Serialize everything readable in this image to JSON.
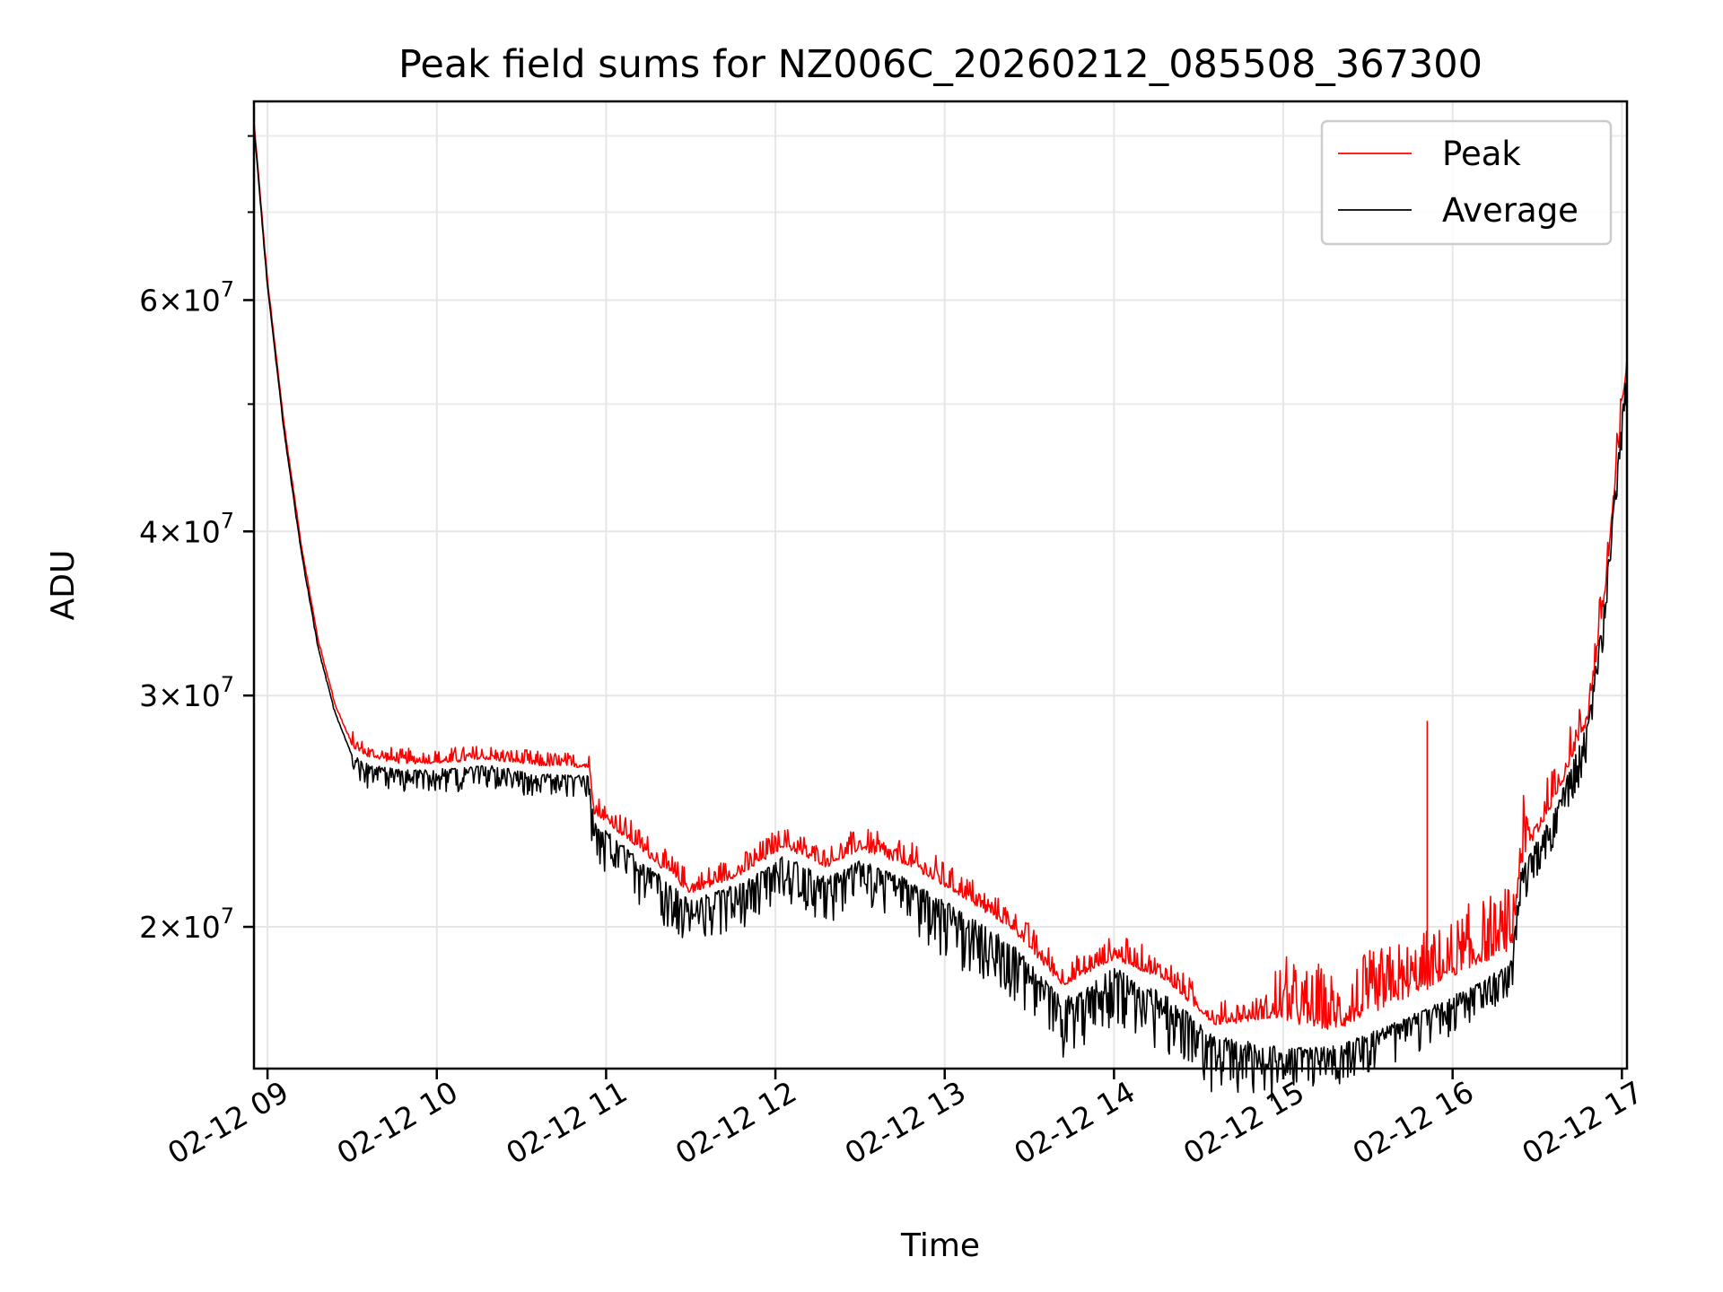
{
  "chart_data": {
    "type": "line",
    "title": "Peak field sums for NZ006C_20260212_085508_367300",
    "xlabel": "Time",
    "ylabel": "ADU",
    "y_scale": "log",
    "grid": true,
    "legend_position": "top-right",
    "xlim": [
      8.92,
      17.03
    ],
    "ylim": [
      15600000,
      85000000
    ],
    "x_ticks": [
      {
        "value": 9,
        "label": "02-12 09"
      },
      {
        "value": 10,
        "label": "02-12 10"
      },
      {
        "value": 11,
        "label": "02-12 11"
      },
      {
        "value": 12,
        "label": "02-12 12"
      },
      {
        "value": 13,
        "label": "02-12 13"
      },
      {
        "value": 14,
        "label": "02-12 14"
      },
      {
        "value": 15,
        "label": "02-12 15"
      },
      {
        "value": 16,
        "label": "02-12 16"
      },
      {
        "value": 17,
        "label": "02-12 17"
      }
    ],
    "y_ticks": [
      {
        "value": 20000000,
        "mantissa": "2",
        "exponent": "7"
      },
      {
        "value": 30000000,
        "mantissa": "3",
        "exponent": "7"
      },
      {
        "value": 40000000,
        "mantissa": "4",
        "exponent": "7"
      },
      {
        "value": 60000000,
        "mantissa": "6",
        "exponent": "7"
      }
    ],
    "y_minor_ticks": [
      50000000,
      70000000,
      80000000
    ],
    "series": [
      {
        "name": "Peak",
        "color": "#ff0000",
        "x": [
          8.92,
          9.0,
          9.1,
          9.2,
          9.3,
          9.4,
          9.5,
          9.6,
          9.8,
          10.0,
          10.3,
          10.6,
          10.9,
          10.93,
          11.2,
          11.5,
          11.8,
          12.05,
          12.3,
          12.5,
          12.8,
          13.1,
          13.4,
          13.7,
          14.0,
          14.3,
          14.6,
          15.0,
          15.3,
          15.6,
          15.9,
          16.2,
          16.35,
          16.4,
          16.6,
          16.8,
          16.9,
          17.03
        ],
        "values": [
          82000000,
          62000000,
          48000000,
          39000000,
          33000000,
          29500000,
          27500000,
          27000000,
          26700000,
          26700000,
          26900000,
          26600000,
          26500000,
          24500000,
          23000000,
          21300000,
          22000000,
          23100000,
          22300000,
          23000000,
          22300000,
          21200000,
          20000000,
          18100000,
          19000000,
          18300000,
          16900000,
          17200000,
          16900000,
          17600000,
          18300000,
          19100000,
          19500000,
          22500000,
          25000000,
          29000000,
          36000000,
          54000000
        ]
      },
      {
        "name": "Average",
        "color": "#000000",
        "x": [
          8.92,
          9.0,
          9.1,
          9.2,
          9.3,
          9.4,
          9.5,
          9.6,
          9.8,
          10.0,
          10.3,
          10.6,
          10.9,
          10.93,
          11.2,
          11.5,
          11.8,
          12.05,
          12.3,
          12.5,
          12.8,
          13.1,
          13.4,
          13.7,
          14.0,
          14.3,
          14.6,
          15.0,
          15.3,
          15.6,
          15.9,
          16.2,
          16.35,
          16.4,
          16.6,
          16.8,
          16.9,
          17.03
        ],
        "values": [
          81500000,
          61500000,
          47500000,
          38600000,
          32600000,
          29100000,
          27000000,
          26500000,
          26300000,
          26300000,
          26500000,
          26100000,
          26000000,
          24000000,
          22400000,
          20900000,
          21500000,
          22600000,
          21700000,
          22400000,
          21600000,
          20500000,
          19300000,
          17500000,
          18500000,
          17700000,
          16400000,
          16100000,
          16200000,
          16700000,
          17400000,
          18200000,
          18800000,
          22000000,
          24500000,
          28500000,
          35500000,
          53500000
        ]
      }
    ],
    "annotations": [
      {
        "series": "Peak",
        "x": 15.85,
        "value": 28700000,
        "note": "isolated spike"
      }
    ]
  }
}
